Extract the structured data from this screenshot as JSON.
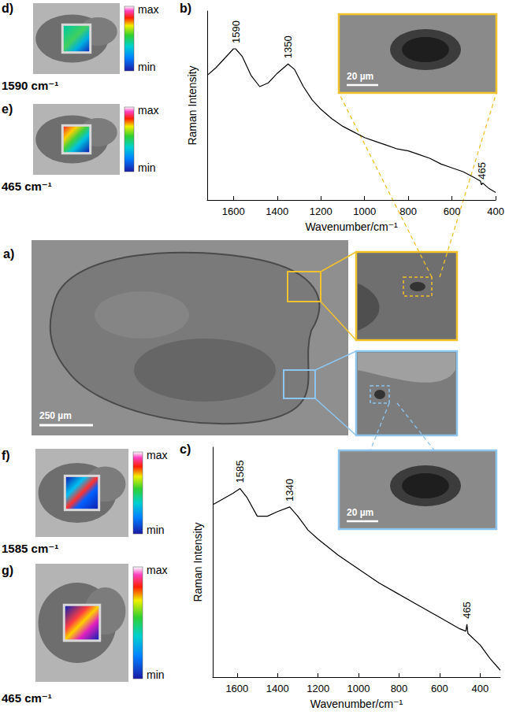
{
  "panels": {
    "a": {
      "label": "a)",
      "scale_bar": "250 µm"
    },
    "d": {
      "label": "d)",
      "caption": "1590 cm⁻¹",
      "colorbar_max": "max",
      "colorbar_min": "min"
    },
    "e": {
      "label": "e)",
      "caption": "465 cm⁻¹",
      "colorbar_max": "max",
      "colorbar_min": "min"
    },
    "f": {
      "label": "f)",
      "caption": "1585 cm⁻¹",
      "colorbar_max": "max",
      "colorbar_min": "min"
    },
    "g": {
      "label": "g)",
      "caption": "465 cm⁻¹",
      "colorbar_max": "max",
      "colorbar_min": "min"
    }
  },
  "chart_data": [
    {
      "panel_label": "b)",
      "type": "line",
      "x_label": "Wavenumber/cm⁻¹",
      "y_label": "Raman Intensity",
      "x": [
        1720,
        1680,
        1640,
        1600,
        1590,
        1560,
        1520,
        1480,
        1440,
        1400,
        1350,
        1320,
        1280,
        1240,
        1200,
        1150,
        1100,
        1050,
        1000,
        950,
        900,
        850,
        800,
        750,
        700,
        650,
        600,
        550,
        500,
        470,
        465,
        460,
        430,
        400
      ],
      "values": [
        66,
        70,
        75,
        80,
        80,
        76,
        66,
        60,
        62,
        67,
        72,
        69,
        60,
        53,
        48,
        43,
        39,
        36,
        33,
        31,
        29,
        27,
        26,
        24,
        22,
        19,
        17,
        15,
        12,
        10,
        8,
        9,
        6,
        4
      ],
      "xlim": [
        1720,
        400
      ],
      "ylim": [
        0,
        100
      ],
      "xticks": [
        1600,
        1400,
        1200,
        1000,
        800,
        600,
        400
      ],
      "tick_labels": "x",
      "grid": false,
      "color": "#000000",
      "annotations": [
        {
          "x": 1590,
          "text": "1590"
        },
        {
          "x": 1350,
          "text": "1350"
        },
        {
          "x": 465,
          "text": "465"
        }
      ],
      "inset_scale_bar": "20 µm"
    },
    {
      "panel_label": "c)",
      "type": "line",
      "x_label": "Wavenumber/cm⁻¹",
      "y_label": "Raman Intensity",
      "x": [
        1720,
        1680,
        1620,
        1585,
        1550,
        1500,
        1450,
        1400,
        1340,
        1300,
        1250,
        1200,
        1100,
        1000,
        900,
        800,
        700,
        600,
        500,
        470,
        465,
        460,
        400,
        350,
        300
      ],
      "values": [
        75,
        77,
        80,
        82,
        78,
        70,
        70,
        72,
        74,
        70,
        64,
        60,
        53,
        47,
        41,
        36,
        31,
        26,
        21,
        20,
        23,
        19,
        14,
        8,
        3
      ],
      "xlim": [
        1720,
        300
      ],
      "ylim": [
        0,
        100
      ],
      "xticks": [
        1600,
        1400,
        1200,
        1000,
        800,
        600,
        400
      ],
      "tick_labels": "x",
      "grid": false,
      "color": "#000000",
      "annotations": [
        {
          "x": 1585,
          "text": "1585"
        },
        {
          "x": 1340,
          "text": "1340"
        },
        {
          "x": 465,
          "text": "465"
        }
      ],
      "inset_scale_bar": "20 µm"
    }
  ]
}
